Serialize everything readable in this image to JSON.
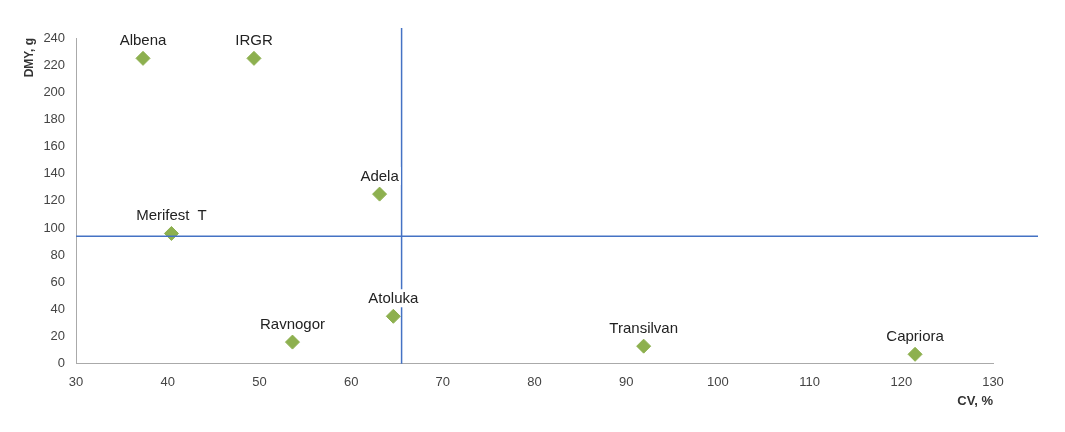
{
  "chart_data": {
    "type": "scatter",
    "xlabel": "CV, %",
    "ylabel": "DMY, g",
    "series": [
      {
        "color": "#8db04f",
        "x": [
          37.3,
          49.4,
          63.1,
          40.4,
          64.6,
          53.6,
          91.9,
          121.5
        ],
        "values": [
          225,
          225,
          125,
          96,
          35,
          16,
          13,
          7
        ]
      }
    ],
    "annotations": [
      {
        "text": "Albena",
        "x": 37.3,
        "y": 225
      },
      {
        "text": "IRGR",
        "x": 49.4,
        "y": 225
      },
      {
        "text": "Adela",
        "x": 63.1,
        "y": 125
      },
      {
        "text": "Merifest  T",
        "x": 40.4,
        "y": 96
      },
      {
        "text": "Atoluka",
        "x": 64.6,
        "y": 35
      },
      {
        "text": "Ravnogor",
        "x": 53.6,
        "y": 16
      },
      {
        "text": "Transilvan",
        "x": 91.9,
        "y": 13
      },
      {
        "text": "Capriora",
        "x": 121.5,
        "y": 7
      }
    ],
    "ref_lines": [
      {
        "axis": "x",
        "value": 65.5,
        "color": "#4472c4"
      },
      {
        "axis": "y",
        "value": 94,
        "color": "#4472c4"
      }
    ],
    "xlim": [
      30,
      130
    ],
    "xticks": [
      30,
      40,
      50,
      60,
      70,
      80,
      90,
      100,
      110,
      120,
      130
    ],
    "ylim": [
      0,
      240
    ],
    "yticks": [
      0,
      20,
      40,
      60,
      80,
      100,
      120,
      140,
      160,
      180,
      200,
      220,
      240
    ],
    "marker": "diamond",
    "grid": false,
    "legend": false
  }
}
